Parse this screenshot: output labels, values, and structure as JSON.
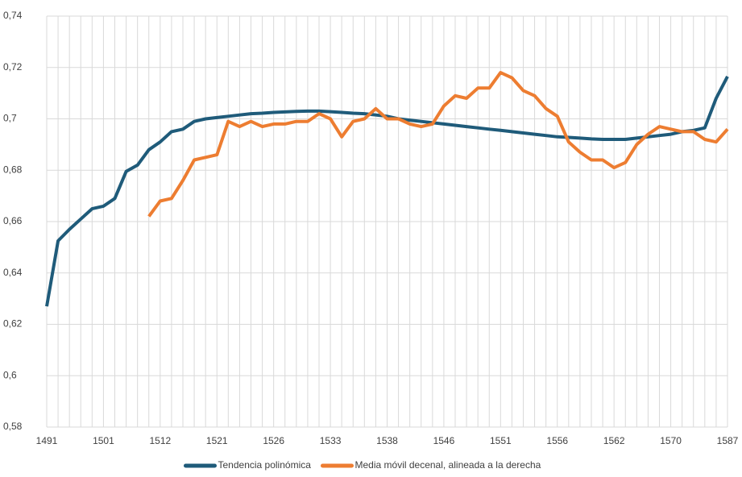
{
  "chart_data": {
    "type": "line",
    "categories": [
      "1491",
      null,
      null,
      null,
      null,
      "1501",
      null,
      null,
      null,
      null,
      "1512",
      null,
      null,
      null,
      null,
      "1521",
      null,
      null,
      null,
      null,
      "1526",
      null,
      null,
      null,
      null,
      "1533",
      null,
      null,
      null,
      null,
      "1538",
      null,
      null,
      null,
      null,
      "1546",
      null,
      null,
      null,
      null,
      "1551",
      null,
      null,
      null,
      null,
      "1556",
      null,
      null,
      null,
      null,
      "1562",
      null,
      null,
      null,
      null,
      "1570",
      null,
      null,
      null,
      null,
      "1587"
    ],
    "series": [
      {
        "name": "Tendencia polinómica",
        "color": "#1f5b7a",
        "values": [
          0.627,
          0.6525,
          0.657,
          0.661,
          0.665,
          0.666,
          0.669,
          0.6795,
          0.682,
          0.688,
          0.691,
          0.695,
          0.696,
          0.699,
          0.7,
          0.7005,
          0.701,
          0.7015,
          0.702,
          0.7022,
          0.7025,
          0.7027,
          0.7029,
          0.703,
          0.703,
          0.7028,
          0.7025,
          0.7022,
          0.702,
          0.7015,
          0.701,
          0.7,
          0.6995,
          0.699,
          0.6985,
          0.698,
          0.6975,
          0.697,
          0.6965,
          0.696,
          0.6955,
          0.695,
          0.6945,
          0.694,
          0.6935,
          0.693,
          0.6928,
          0.6925,
          0.6922,
          0.692,
          0.692,
          0.692,
          0.6925,
          0.693,
          0.6935,
          0.694,
          0.695,
          0.6955,
          0.6965,
          0.708,
          0.7165
        ]
      },
      {
        "name": "Media móvil decenal, alineada a la derecha",
        "color": "#ed7d31",
        "values": [
          null,
          null,
          null,
          null,
          null,
          null,
          null,
          null,
          null,
          0.662,
          0.668,
          0.669,
          0.676,
          0.684,
          0.685,
          0.686,
          0.699,
          0.697,
          0.699,
          0.697,
          0.698,
          0.698,
          0.699,
          0.699,
          0.702,
          0.7,
          0.693,
          0.699,
          0.7,
          0.704,
          0.7,
          0.7,
          0.698,
          0.697,
          0.698,
          0.705,
          0.709,
          0.708,
          0.712,
          0.712,
          0.718,
          0.716,
          0.711,
          0.709,
          0.704,
          0.701,
          0.691,
          0.687,
          0.684,
          0.684,
          0.681,
          0.683,
          0.69,
          0.694,
          0.697,
          0.696,
          0.695,
          0.695,
          0.692,
          0.691,
          0.696
        ]
      }
    ],
    "ylim": [
      0.58,
      0.74
    ],
    "yticks": [
      {
        "value": 0.58,
        "label": "0,58"
      },
      {
        "value": 0.6,
        "label": "0,6"
      },
      {
        "value": 0.62,
        "label": "0,62"
      },
      {
        "value": 0.64,
        "label": "0,64"
      },
      {
        "value": 0.66,
        "label": "0,66"
      },
      {
        "value": 0.68,
        "label": "0,68"
      },
      {
        "value": 0.7,
        "label": "0,7"
      },
      {
        "value": 0.72,
        "label": "0,72"
      },
      {
        "value": 0.74,
        "label": "0,74"
      }
    ],
    "grid": true,
    "legend": "bottom"
  }
}
